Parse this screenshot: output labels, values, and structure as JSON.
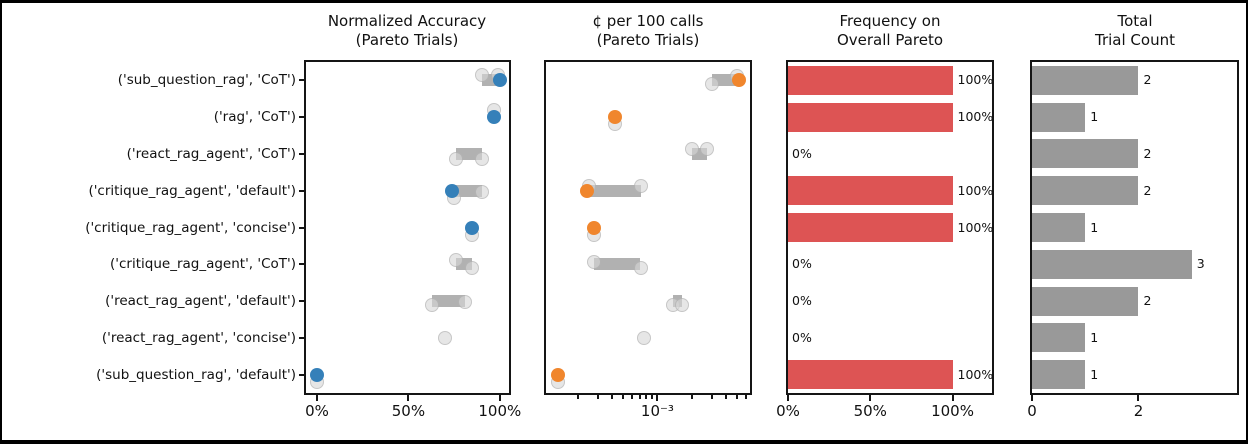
{
  "figure": {
    "colors": {
      "blue": "#3580b9",
      "orange": "#f0862d",
      "red": "#dd5454",
      "gray": "#999999"
    }
  },
  "categories": [
    "('sub_question_rag', 'CoT')",
    "('rag', 'CoT')",
    "('react_rag_agent', 'CoT')",
    "('critique_rag_agent', 'default')",
    "('critique_rag_agent', 'concise')",
    "('critique_rag_agent', 'CoT')",
    "('react_rag_agent', 'default')",
    "('react_rag_agent', 'concise')",
    "('sub_question_rag', 'default')"
  ],
  "chart_data": [
    {
      "type": "scatter",
      "title_lines": [
        "Normalized Accuracy",
        "(Pareto Trials)"
      ],
      "scale": "linear",
      "xlim": [
        -6,
        105
      ],
      "ticks": [
        {
          "v": 0,
          "label": "0%"
        },
        {
          "v": 50,
          "label": "50%"
        },
        {
          "v": 100,
          "label": "100%"
        }
      ],
      "best_color": "#3580b9",
      "rows": [
        {
          "trials": [
            {
              "v": 90,
              "dy": -5
            },
            {
              "v": 99,
              "dy": -5
            }
          ],
          "best": 100
        },
        {
          "trials": [
            {
              "v": 97,
              "dy": -7
            }
          ],
          "best": 97
        },
        {
          "trials": [
            {
              "v": 76,
              "dy": 5
            },
            {
              "v": 90,
              "dy": 5
            }
          ],
          "best": null
        },
        {
          "trials": [
            {
              "v": 75,
              "dy": 7
            },
            {
              "v": 90,
              "dy": 1
            }
          ],
          "best": 74
        },
        {
          "trials": [
            {
              "v": 85,
              "dy": 7
            }
          ],
          "best": 85
        },
        {
          "trials": [
            {
              "v": 76,
              "dy": -4
            },
            {
              "v": 85,
              "dy": 4
            }
          ],
          "best": null
        },
        {
          "trials": [
            {
              "v": 63,
              "dy": 4
            },
            {
              "v": 81,
              "dy": 1
            }
          ],
          "best": null
        },
        {
          "trials": [
            {
              "v": 70,
              "dy": 0
            }
          ],
          "best": null
        },
        {
          "trials": [
            {
              "v": 0,
              "dy": 7
            }
          ],
          "best": 0
        }
      ]
    },
    {
      "type": "scatter",
      "title_lines": [
        "¢ per 100 calls",
        "(Pareto Trials)"
      ],
      "scale": "log",
      "xlim": [
        0.000105,
        0.0065
      ],
      "ticks": [
        {
          "v": 0.001,
          "label": "10⁻³"
        }
      ],
      "minor_ticks": [
        0.0002,
        0.0003,
        0.0004,
        0.0005,
        0.0006,
        0.0007,
        0.0008,
        0.0009,
        0.002,
        0.003,
        0.004,
        0.005,
        0.006
      ],
      "best_color": "#f0862d",
      "rows": [
        {
          "trials": [
            {
              "v": 0.003,
              "dy": 4
            },
            {
              "v": 0.005,
              "dy": -4
            }
          ],
          "best": 0.0052
        },
        {
          "trials": [
            {
              "v": 0.00042,
              "dy": 7
            }
          ],
          "best": 0.00042
        },
        {
          "trials": [
            {
              "v": 0.002,
              "dy": -5
            },
            {
              "v": 0.00275,
              "dy": -5
            }
          ],
          "best": null
        },
        {
          "trials": [
            {
              "v": 0.00025,
              "dy": -5
            },
            {
              "v": 0.00071,
              "dy": -5
            }
          ],
          "best": 0.00024
        },
        {
          "trials": [
            {
              "v": 0.000275,
              "dy": 7
            }
          ],
          "best": 0.000275
        },
        {
          "trials": [
            {
              "v": 0.000275,
              "dy": -2
            },
            {
              "v": 0.00071,
              "dy": 4
            }
          ],
          "best": null
        },
        {
          "trials": [
            {
              "v": 0.00137,
              "dy": 4
            },
            {
              "v": 0.00164,
              "dy": 4
            }
          ],
          "best": null
        },
        {
          "trials": [
            {
              "v": 0.00076,
              "dy": 0
            }
          ],
          "best": null
        },
        {
          "trials": [
            {
              "v": 0.000135,
              "dy": 7
            }
          ],
          "best": 0.000135
        }
      ]
    },
    {
      "type": "bar",
      "title_lines": [
        "Frequency on",
        "Overall Pareto"
      ],
      "scale": "linear",
      "xlim": [
        0,
        124
      ],
      "ticks": [
        {
          "v": 0,
          "label": "0%"
        },
        {
          "v": 50,
          "label": "50%"
        },
        {
          "v": 100,
          "label": "100%"
        }
      ],
      "bar_color": "#dd5454",
      "values": [
        100,
        100,
        0,
        100,
        100,
        0,
        0,
        0,
        100
      ],
      "value_labels": [
        "100%",
        "100%",
        "0%",
        "100%",
        "100%",
        "0%",
        "0%",
        "0%",
        "100%"
      ]
    },
    {
      "type": "bar",
      "title_lines": [
        "Total",
        "Trial Count"
      ],
      "scale": "linear",
      "xlim": [
        0,
        3.85
      ],
      "ticks": [
        {
          "v": 0,
          "label": "0"
        },
        {
          "v": 2,
          "label": "2"
        }
      ],
      "bar_color": "#999999",
      "values": [
        2,
        1,
        2,
        2,
        1,
        3,
        2,
        1,
        1
      ],
      "value_labels": [
        "2",
        "1",
        "2",
        "2",
        "1",
        "3",
        "2",
        "1",
        "1"
      ]
    }
  ]
}
